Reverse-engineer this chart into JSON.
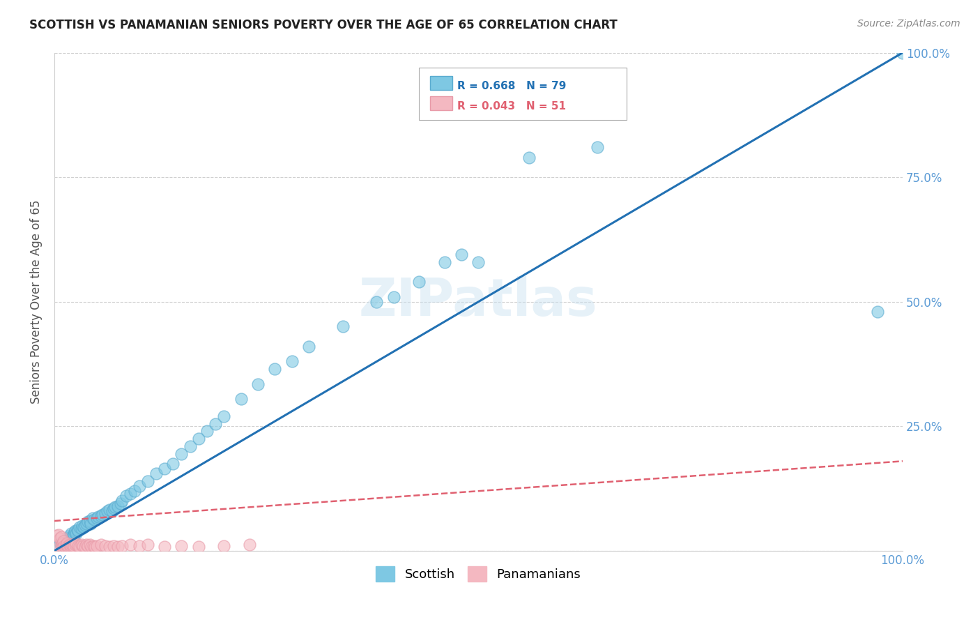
{
  "title": "SCOTTISH VS PANAMANIAN SENIORS POVERTY OVER THE AGE OF 65 CORRELATION CHART",
  "source": "Source: ZipAtlas.com",
  "ylabel": "Seniors Poverty Over the Age of 65",
  "r_scottish": 0.668,
  "n_scottish": 79,
  "r_panamanian": 0.043,
  "n_panamanian": 51,
  "scottish_color": "#7ec8e3",
  "scottish_edge_color": "#5aabcf",
  "panamanian_color": "#f4b8c1",
  "panamanian_edge_color": "#e89aa8",
  "scottish_line_color": "#2271b3",
  "panamanian_line_color": "#e06070",
  "background_color": "#ffffff",
  "watermark": "ZIPatlas",
  "scottish_x": [
    0.005,
    0.007,
    0.008,
    0.01,
    0.01,
    0.011,
    0.012,
    0.013,
    0.014,
    0.015,
    0.015,
    0.016,
    0.017,
    0.018,
    0.018,
    0.019,
    0.02,
    0.02,
    0.022,
    0.023,
    0.024,
    0.025,
    0.026,
    0.027,
    0.028,
    0.03,
    0.032,
    0.033,
    0.035,
    0.036,
    0.038,
    0.04,
    0.042,
    0.043,
    0.045,
    0.047,
    0.05,
    0.052,
    0.055,
    0.057,
    0.06,
    0.063,
    0.065,
    0.068,
    0.07,
    0.072,
    0.075,
    0.078,
    0.08,
    0.085,
    0.09,
    0.095,
    0.1,
    0.11,
    0.12,
    0.13,
    0.14,
    0.15,
    0.16,
    0.17,
    0.18,
    0.19,
    0.2,
    0.22,
    0.24,
    0.26,
    0.28,
    0.3,
    0.34,
    0.38,
    0.4,
    0.43,
    0.46,
    0.48,
    0.5,
    0.56,
    0.64,
    0.97,
    1.0
  ],
  "scottish_y": [
    0.01,
    0.015,
    0.012,
    0.01,
    0.018,
    0.014,
    0.016,
    0.015,
    0.02,
    0.018,
    0.025,
    0.02,
    0.022,
    0.025,
    0.03,
    0.028,
    0.025,
    0.035,
    0.03,
    0.032,
    0.038,
    0.04,
    0.035,
    0.042,
    0.04,
    0.048,
    0.045,
    0.05,
    0.048,
    0.052,
    0.055,
    0.058,
    0.06,
    0.055,
    0.065,
    0.063,
    0.065,
    0.068,
    0.07,
    0.072,
    0.075,
    0.08,
    0.082,
    0.08,
    0.085,
    0.088,
    0.09,
    0.095,
    0.1,
    0.11,
    0.115,
    0.12,
    0.13,
    0.14,
    0.155,
    0.165,
    0.175,
    0.195,
    0.21,
    0.225,
    0.24,
    0.255,
    0.27,
    0.305,
    0.335,
    0.365,
    0.38,
    0.41,
    0.45,
    0.5,
    0.51,
    0.54,
    0.58,
    0.595,
    0.58,
    0.79,
    0.81,
    0.48,
    1.0
  ],
  "panamanian_x": [
    0.003,
    0.005,
    0.006,
    0.007,
    0.008,
    0.008,
    0.009,
    0.01,
    0.01,
    0.011,
    0.012,
    0.013,
    0.014,
    0.015,
    0.015,
    0.016,
    0.017,
    0.018,
    0.019,
    0.02,
    0.021,
    0.022,
    0.023,
    0.025,
    0.026,
    0.028,
    0.03,
    0.032,
    0.034,
    0.036,
    0.038,
    0.04,
    0.042,
    0.044,
    0.046,
    0.048,
    0.05,
    0.055,
    0.06,
    0.065,
    0.07,
    0.075,
    0.08,
    0.09,
    0.1,
    0.11,
    0.13,
    0.15,
    0.17,
    0.2,
    0.23
  ],
  "panamanian_y": [
    0.03,
    0.032,
    0.008,
    0.025,
    0.01,
    0.028,
    0.012,
    0.015,
    0.008,
    0.02,
    0.01,
    0.008,
    0.012,
    0.01,
    0.015,
    0.008,
    0.01,
    0.012,
    0.008,
    0.01,
    0.012,
    0.008,
    0.01,
    0.012,
    0.015,
    0.01,
    0.008,
    0.012,
    0.01,
    0.008,
    0.012,
    0.01,
    0.012,
    0.008,
    0.01,
    0.008,
    0.01,
    0.012,
    0.01,
    0.008,
    0.01,
    0.008,
    0.01,
    0.012,
    0.01,
    0.012,
    0.008,
    0.01,
    0.008,
    0.01,
    0.012
  ],
  "scottish_trendline": [
    0.0,
    0.0,
    1.0,
    1.0
  ],
  "panamanian_trendline": [
    0.0,
    0.06,
    1.0,
    0.18
  ],
  "xlim": [
    0.0,
    1.0
  ],
  "ylim": [
    0.0,
    1.0
  ],
  "tick_color": "#5b9bd5",
  "grid_color": "#d0d0d0",
  "ylabel_color": "#555555",
  "title_color": "#222222"
}
